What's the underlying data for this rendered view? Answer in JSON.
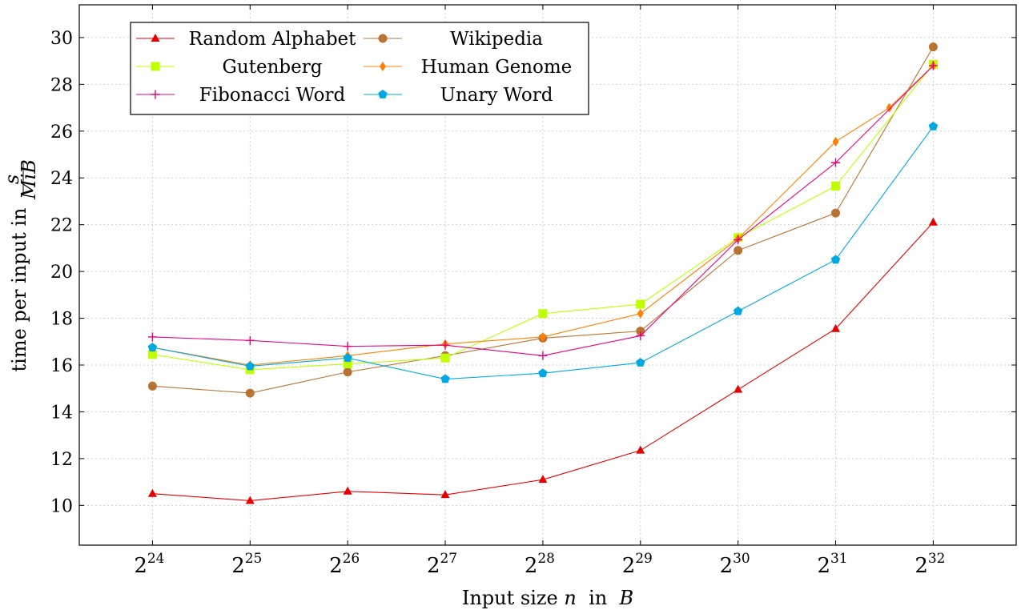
{
  "chart_data": {
    "type": "line",
    "xlabel": "Input size",
    "xlabel_var": "n",
    "xlabel_mid": " in ",
    "xlabel_unit": "B",
    "ylabel": "time per input in",
    "ylabel_unit_num": "s",
    "ylabel_unit_den": "MiB",
    "x_base": "2",
    "x_exponents": [
      24,
      25,
      26,
      27,
      28,
      29,
      30,
      31,
      32
    ],
    "xlim": [
      23.25,
      32.85
    ],
    "ylim": [
      8.3,
      31.4
    ],
    "yticks": [
      10,
      12,
      14,
      16,
      18,
      20,
      22,
      24,
      26,
      28,
      30
    ],
    "grid": true,
    "legend_position": "top-left",
    "series": [
      {
        "name": "Random Alphabet",
        "color": "#e60000",
        "marker": "triangle",
        "x": [
          24,
          25,
          26,
          27,
          28,
          29,
          30,
          31,
          32
        ],
        "values": [
          10.5,
          10.2,
          10.6,
          10.45,
          11.1,
          12.35,
          14.95,
          17.55,
          22.1
        ]
      },
      {
        "name": "Wikipedia",
        "color": "#b87333",
        "marker": "circle",
        "x": [
          24,
          25,
          26,
          27,
          28,
          29,
          30,
          31,
          32
        ],
        "values": [
          15.1,
          14.8,
          15.7,
          16.4,
          17.15,
          17.45,
          20.9,
          22.5,
          29.6
        ]
      },
      {
        "name": "Gutenberg",
        "color": "#bfff00",
        "marker": "square",
        "x": [
          24,
          25,
          26,
          27,
          28,
          29,
          30,
          31,
          32
        ],
        "values": [
          16.45,
          15.8,
          16.05,
          16.3,
          18.2,
          18.6,
          21.45,
          23.65,
          28.85
        ]
      },
      {
        "name": "Human Genome",
        "color": "#ff8000",
        "marker": "diamond",
        "x": [
          24,
          25,
          26,
          27,
          28,
          29,
          30,
          31,
          31.55,
          32
        ],
        "values": [
          16.75,
          16.0,
          16.4,
          16.9,
          17.2,
          18.2,
          21.4,
          25.55,
          27.0,
          28.8
        ]
      },
      {
        "name": "Fibonacci Word",
        "color": "#e6007e",
        "marker": "plus",
        "x": [
          24,
          25,
          26,
          27,
          28,
          29,
          30,
          31,
          32
        ],
        "values": [
          17.2,
          17.05,
          16.8,
          16.85,
          16.4,
          17.25,
          21.35,
          24.65,
          28.8
        ]
      },
      {
        "name": "Unary Word",
        "color": "#00a8e1",
        "marker": "pentagon",
        "x": [
          24,
          25,
          26,
          27,
          28,
          29,
          30,
          31,
          32
        ],
        "values": [
          16.75,
          15.95,
          16.3,
          15.4,
          15.65,
          16.1,
          18.3,
          20.5,
          26.2
        ]
      }
    ]
  }
}
